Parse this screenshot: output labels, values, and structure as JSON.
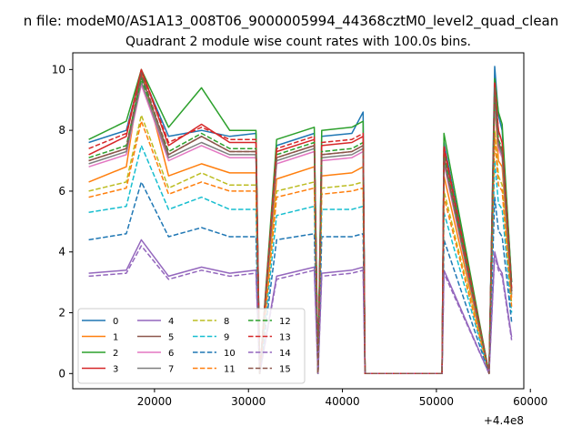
{
  "chart_data": {
    "type": "line",
    "suptitle": "n file: modeM0/AS1A13_008T06_9000005994_44368cztM0_level2_quad_clean",
    "title": "Quadrant 2 module wise count rates with 100.0s bins.",
    "xlabel": "",
    "ylabel": "",
    "x_offset_label": "+4.4e8",
    "xlim": [
      11300,
      59300
    ],
    "ylim": [
      -0.5,
      10.55
    ],
    "xticks": [
      20000,
      30000,
      40000,
      50000,
      60000
    ],
    "xtick_labels": [
      "20000",
      "30000",
      "40000",
      "50000",
      "60000"
    ],
    "yticks": [
      0,
      2,
      4,
      6,
      8,
      10
    ],
    "ytick_labels": [
      "0",
      "2",
      "4",
      "6",
      "8",
      "10"
    ],
    "grid": false,
    "legend_position": "lower-left",
    "legend_columns": 4,
    "x_sample_points": [
      13000,
      17000,
      18600,
      21500,
      25000,
      28000,
      30800,
      31200,
      33000,
      37000,
      37400,
      37800,
      41000,
      42200,
      42400,
      50600,
      50800,
      55600,
      56200,
      56600,
      57000,
      58000
    ],
    "series": [
      {
        "name": "0",
        "color": "#1f77b4",
        "dash": "solid",
        "values": [
          7.6,
          8.0,
          9.9,
          7.8,
          8.0,
          7.8,
          7.9,
          0.0,
          7.5,
          7.9,
          0.0,
          7.8,
          7.9,
          8.6,
          0.0,
          0.0,
          7.6,
          0.0,
          10.1,
          8.5,
          8.0,
          3.0
        ]
      },
      {
        "name": "1",
        "color": "#ff7f0e",
        "dash": "solid",
        "values": [
          6.3,
          6.8,
          10.0,
          6.5,
          6.9,
          6.6,
          6.6,
          0.0,
          6.4,
          6.8,
          0.0,
          6.5,
          6.6,
          6.8,
          0.0,
          0.0,
          6.5,
          0.0,
          9.0,
          7.0,
          6.8,
          2.5
        ]
      },
      {
        "name": "2",
        "color": "#2ca02c",
        "dash": "solid",
        "values": [
          7.7,
          8.3,
          10.0,
          8.1,
          9.4,
          8.0,
          8.0,
          0.0,
          7.7,
          8.1,
          0.0,
          8.0,
          8.1,
          8.3,
          0.0,
          0.0,
          7.9,
          0.0,
          9.7,
          8.6,
          8.2,
          3.0
        ]
      },
      {
        "name": "3",
        "color": "#d62728",
        "dash": "solid",
        "values": [
          7.2,
          7.8,
          10.0,
          7.5,
          8.2,
          7.6,
          7.6,
          0.0,
          7.3,
          7.7,
          0.0,
          7.5,
          7.6,
          7.8,
          0.0,
          0.0,
          7.4,
          0.0,
          9.5,
          8.0,
          7.6,
          2.8
        ]
      },
      {
        "name": "4",
        "color": "#9467bd",
        "dash": "solid",
        "values": [
          3.3,
          3.4,
          4.4,
          3.2,
          3.5,
          3.3,
          3.4,
          0.0,
          3.2,
          3.5,
          0.0,
          3.3,
          3.4,
          3.5,
          0.0,
          0.0,
          3.4,
          0.0,
          4.0,
          3.5,
          3.3,
          1.2
        ]
      },
      {
        "name": "5",
        "color": "#8c564b",
        "dash": "solid",
        "values": [
          7.0,
          7.4,
          9.8,
          7.2,
          7.8,
          7.3,
          7.3,
          0.0,
          7.1,
          7.5,
          0.0,
          7.2,
          7.3,
          7.5,
          0.0,
          0.0,
          7.1,
          0.0,
          9.2,
          7.6,
          7.3,
          2.7
        ]
      },
      {
        "name": "6",
        "color": "#e377c2",
        "dash": "solid",
        "values": [
          6.8,
          7.2,
          9.5,
          7.0,
          7.5,
          7.1,
          7.1,
          0.0,
          6.9,
          7.3,
          0.0,
          7.0,
          7.1,
          7.3,
          0.0,
          0.0,
          6.9,
          0.0,
          9.0,
          7.4,
          7.1,
          2.6
        ]
      },
      {
        "name": "7",
        "color": "#7f7f7f",
        "dash": "solid",
        "values": [
          6.9,
          7.3,
          9.6,
          7.1,
          7.6,
          7.2,
          7.2,
          0.0,
          7.0,
          7.4,
          0.0,
          7.1,
          7.2,
          7.4,
          0.0,
          0.0,
          7.0,
          0.0,
          9.1,
          7.5,
          7.2,
          2.6
        ]
      },
      {
        "name": "8",
        "color": "#bcbd22",
        "dash": "dashed",
        "values": [
          6.0,
          6.3,
          8.5,
          6.1,
          6.6,
          6.2,
          6.2,
          0.0,
          6.0,
          6.3,
          0.0,
          6.1,
          6.2,
          6.3,
          0.0,
          0.0,
          6.0,
          0.0,
          8.0,
          6.5,
          6.2,
          2.3
        ]
      },
      {
        "name": "9",
        "color": "#17becf",
        "dash": "dashed",
        "values": [
          5.3,
          5.5,
          7.5,
          5.4,
          5.8,
          5.4,
          5.4,
          0.0,
          5.2,
          5.5,
          0.0,
          5.4,
          5.4,
          5.5,
          0.0,
          0.0,
          5.3,
          0.0,
          7.0,
          5.6,
          5.4,
          2.0
        ]
      },
      {
        "name": "10",
        "color": "#1f77b4",
        "dash": "dashed",
        "values": [
          4.4,
          4.6,
          6.3,
          4.5,
          4.8,
          4.5,
          4.5,
          0.0,
          4.4,
          4.6,
          0.0,
          4.5,
          4.5,
          4.6,
          0.0,
          0.0,
          4.4,
          0.0,
          5.8,
          4.7,
          4.5,
          1.7
        ]
      },
      {
        "name": "11",
        "color": "#ff7f0e",
        "dash": "dashed",
        "values": [
          5.8,
          6.1,
          8.3,
          5.9,
          6.3,
          6.0,
          6.0,
          0.0,
          5.8,
          6.1,
          0.0,
          5.9,
          6.0,
          6.1,
          0.0,
          0.0,
          5.8,
          0.0,
          7.8,
          6.2,
          6.0,
          2.2
        ]
      },
      {
        "name": "12",
        "color": "#2ca02c",
        "dash": "dashed",
        "values": [
          7.1,
          7.5,
          9.7,
          7.3,
          7.9,
          7.4,
          7.4,
          0.0,
          7.2,
          7.6,
          0.0,
          7.3,
          7.4,
          7.6,
          0.0,
          0.0,
          7.2,
          0.0,
          9.3,
          7.7,
          7.4,
          2.7
        ]
      },
      {
        "name": "13",
        "color": "#d62728",
        "dash": "dashed",
        "values": [
          7.4,
          7.9,
          10.0,
          7.6,
          8.1,
          7.7,
          7.7,
          0.0,
          7.4,
          7.8,
          0.0,
          7.6,
          7.7,
          7.9,
          0.0,
          0.0,
          7.5,
          0.0,
          9.6,
          8.0,
          7.6,
          2.8
        ]
      },
      {
        "name": "14",
        "color": "#9467bd",
        "dash": "dashed",
        "values": [
          3.2,
          3.3,
          4.2,
          3.1,
          3.4,
          3.2,
          3.3,
          0.0,
          3.1,
          3.4,
          0.0,
          3.2,
          3.3,
          3.4,
          0.0,
          0.0,
          3.3,
          0.0,
          3.9,
          3.4,
          3.2,
          1.1
        ]
      },
      {
        "name": "15",
        "color": "#8c564b",
        "dash": "dashed",
        "values": [
          7.0,
          7.4,
          9.9,
          7.2,
          7.8,
          7.3,
          7.3,
          0.0,
          7.1,
          7.5,
          0.0,
          7.2,
          7.3,
          7.5,
          0.0,
          0.0,
          7.1,
          0.0,
          9.4,
          7.6,
          7.3,
          2.7
        ]
      }
    ]
  }
}
